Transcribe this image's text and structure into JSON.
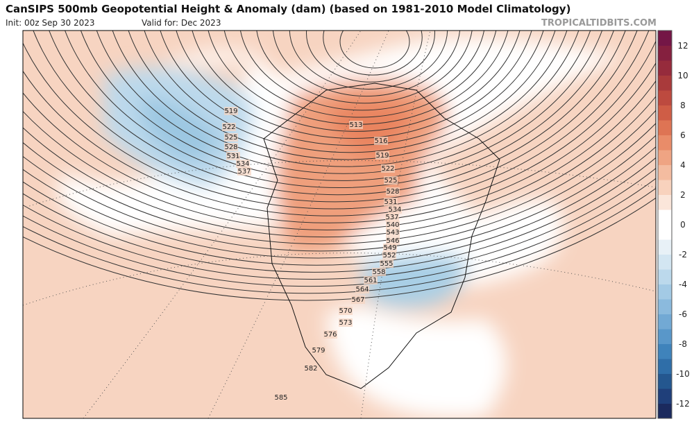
{
  "header": {
    "title": "CanSIPS 500mb Geopotential Height & Anomaly (dam) (based on 1981-2010 Model Climatology)",
    "init": "Init: 00z Sep 30 2023",
    "valid": "Valid for: Dec 2023",
    "source": "TROPICALTIDBITS.COM"
  },
  "colorbar": {
    "labels": [
      12,
      10,
      8,
      6,
      4,
      2,
      0,
      -2,
      -4,
      -6,
      -8,
      -10,
      -12
    ]
  },
  "contours": {
    "west": [
      519,
      522,
      525,
      528,
      531,
      534,
      537
    ],
    "east": [
      513,
      516,
      519,
      522,
      525,
      528,
      531,
      534,
      537,
      540,
      543,
      546,
      549,
      552,
      555,
      558,
      561,
      564,
      567,
      570,
      573,
      576,
      579,
      582,
      585
    ]
  }
}
